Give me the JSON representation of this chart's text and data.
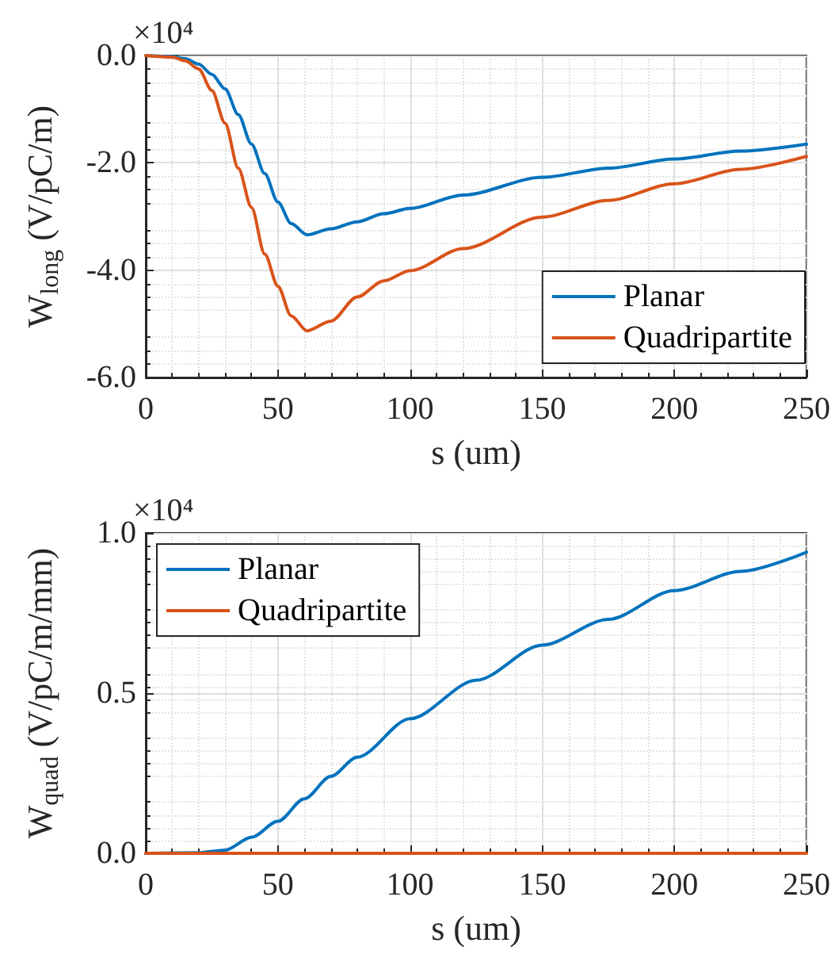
{
  "chart_data": [
    {
      "type": "line",
      "xlabel": "s (um)",
      "ylabel": "W$_{long}$ (V/pC/m)",
      "annotations": [
        "×10⁴"
      ],
      "xlim": [
        0,
        250
      ],
      "xticks": [
        0,
        50,
        100,
        150,
        200,
        250
      ],
      "ylim": [
        -6,
        0
      ],
      "yticks": [
        {
          "value": -6,
          "label": "-6.0"
        },
        {
          "value": -4,
          "label": "-4.0"
        },
        {
          "value": -2,
          "label": "-2.0"
        },
        {
          "value": 0,
          "label": "0.0"
        }
      ],
      "grid": true,
      "legend": "bottom right",
      "series": [
        {
          "name": "Planar",
          "color": "#0072bd",
          "x": [
            0,
            10,
            15,
            20,
            25,
            30,
            35,
            40,
            45,
            50,
            55,
            61,
            70,
            80,
            90,
            100,
            120,
            150,
            175,
            200,
            225,
            250
          ],
          "values": [
            0,
            -0.02,
            -0.06,
            -0.16,
            -0.35,
            -0.62,
            -1.1,
            -1.65,
            -2.2,
            -2.73,
            -3.13,
            -3.34,
            -3.23,
            -3.1,
            -2.95,
            -2.85,
            -2.6,
            -2.27,
            -2.1,
            -1.93,
            -1.78,
            -1.65
          ]
        },
        {
          "name": "Quadripartite",
          "color": "#d95319",
          "x": [
            0,
            10,
            15,
            20,
            25,
            30,
            35,
            40,
            45,
            50,
            55,
            61,
            70,
            80,
            90,
            100,
            120,
            150,
            175,
            200,
            225,
            250
          ],
          "values": [
            0,
            -0.03,
            -0.1,
            -0.25,
            -0.65,
            -1.26,
            -2.1,
            -2.83,
            -3.7,
            -4.3,
            -4.85,
            -5.13,
            -4.95,
            -4.5,
            -4.2,
            -4.01,
            -3.6,
            -3.01,
            -2.7,
            -2.39,
            -2.12,
            -1.88
          ]
        }
      ]
    },
    {
      "type": "line",
      "xlabel": "s (um)",
      "ylabel": "W$_{quad}$ (V/pC/m/mm)",
      "annotations": [
        "×10⁴"
      ],
      "xlim": [
        0,
        250
      ],
      "xticks": [
        0,
        50,
        100,
        150,
        200,
        250
      ],
      "ylim": [
        0,
        1
      ],
      "yticks": [
        {
          "value": 0,
          "label": "0.0"
        },
        {
          "value": 0.5,
          "label": "0.5"
        },
        {
          "value": 1,
          "label": "1.0"
        }
      ],
      "grid": true,
      "legend": "top left",
      "series": [
        {
          "name": "Planar",
          "color": "#0072bd",
          "x": [
            0,
            20,
            30,
            40,
            50,
            60,
            70,
            80,
            100,
            125,
            150,
            175,
            200,
            225,
            250
          ],
          "values": [
            0,
            0.002,
            0.01,
            0.05,
            0.1,
            0.17,
            0.24,
            0.3,
            0.42,
            0.54,
            0.65,
            0.73,
            0.82,
            0.88,
            0.94
          ]
        },
        {
          "name": "Quadripartite",
          "color": "#d95319",
          "x": [
            0,
            250
          ],
          "values": [
            0,
            0
          ]
        }
      ]
    }
  ]
}
